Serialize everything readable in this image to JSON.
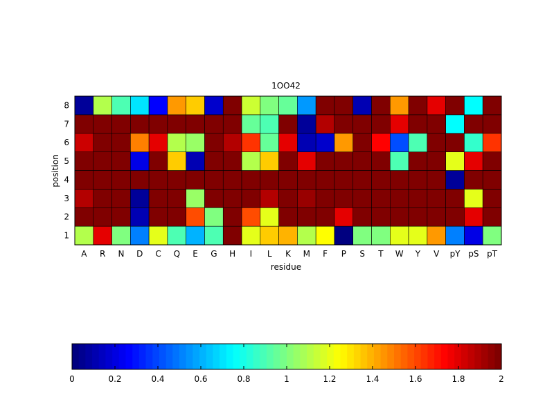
{
  "chart_data": {
    "type": "heatmap",
    "title": "1OO42",
    "xlabel": "residue",
    "ylabel": "position",
    "x_categories": [
      "A",
      "R",
      "N",
      "D",
      "C",
      "Q",
      "E",
      "G",
      "H",
      "I",
      "L",
      "K",
      "M",
      "F",
      "P",
      "S",
      "T",
      "W",
      "Y",
      "V",
      "pY",
      "pS",
      "pT"
    ],
    "y_categories": [
      "1",
      "2",
      "3",
      "4",
      "5",
      "6",
      "7",
      "8"
    ],
    "values": [
      [
        1.1,
        1.8,
        1.0,
        0.5,
        1.2,
        0.9,
        0.6,
        0.9,
        2.0,
        1.2,
        1.35,
        1.4,
        1.1,
        1.25,
        0.0,
        1.0,
        1.0,
        1.2,
        1.2,
        1.45,
        0.5,
        0.2,
        1.0
      ],
      [
        2.0,
        2.0,
        2.0,
        0.1,
        2.0,
        2.0,
        1.6,
        1.0,
        2.0,
        1.6,
        1.2,
        2.0,
        2.0,
        2.0,
        1.8,
        2.0,
        2.0,
        2.0,
        2.0,
        2.0,
        2.0,
        1.8,
        2.0
      ],
      [
        1.9,
        2.0,
        2.0,
        0.05,
        2.0,
        2.0,
        1.05,
        2.0,
        2.0,
        2.0,
        1.9,
        2.0,
        1.95,
        2.0,
        2.0,
        2.0,
        2.0,
        2.0,
        2.0,
        2.0,
        2.0,
        1.2,
        2.0
      ],
      [
        2.0,
        2.0,
        2.0,
        2.0,
        2.0,
        2.0,
        2.0,
        2.0,
        2.0,
        2.0,
        2.0,
        2.0,
        2.0,
        2.0,
        2.0,
        2.0,
        2.0,
        2.0,
        2.0,
        2.0,
        0.05,
        2.0,
        2.0
      ],
      [
        2.0,
        2.0,
        2.0,
        0.2,
        2.0,
        1.35,
        0.1,
        2.0,
        2.0,
        1.1,
        1.35,
        2.0,
        1.8,
        2.0,
        2.0,
        2.0,
        2.0,
        0.9,
        2.0,
        2.0,
        1.2,
        1.8,
        2.0
      ],
      [
        1.85,
        2.0,
        2.0,
        1.5,
        1.8,
        1.1,
        1.05,
        2.0,
        1.9,
        1.65,
        0.95,
        1.8,
        0.1,
        0.15,
        1.45,
        2.0,
        1.75,
        0.4,
        0.9,
        2.0,
        2.0,
        0.85,
        1.65
      ],
      [
        2.0,
        2.0,
        2.0,
        2.0,
        2.0,
        2.0,
        2.0,
        2.0,
        2.0,
        0.95,
        0.9,
        2.0,
        0.05,
        1.9,
        2.0,
        2.0,
        2.0,
        1.8,
        2.0,
        2.0,
        0.75,
        2.0,
        2.0
      ],
      [
        0.05,
        1.1,
        0.9,
        0.7,
        0.25,
        1.45,
        1.35,
        0.15,
        2.0,
        1.15,
        1.0,
        0.95,
        0.55,
        2.0,
        2.0,
        0.1,
        2.0,
        1.45,
        2.0,
        1.8,
        2.0,
        0.75,
        2.0
      ]
    ],
    "colormap": "jet",
    "colorbar": {
      "range": [
        0,
        2
      ],
      "ticks": [
        "0",
        "0.2",
        "0.4",
        "0.6",
        "0.8",
        "1",
        "1.2",
        "1.4",
        "1.6",
        "1.8",
        "2"
      ],
      "placement": "bottom"
    }
  }
}
